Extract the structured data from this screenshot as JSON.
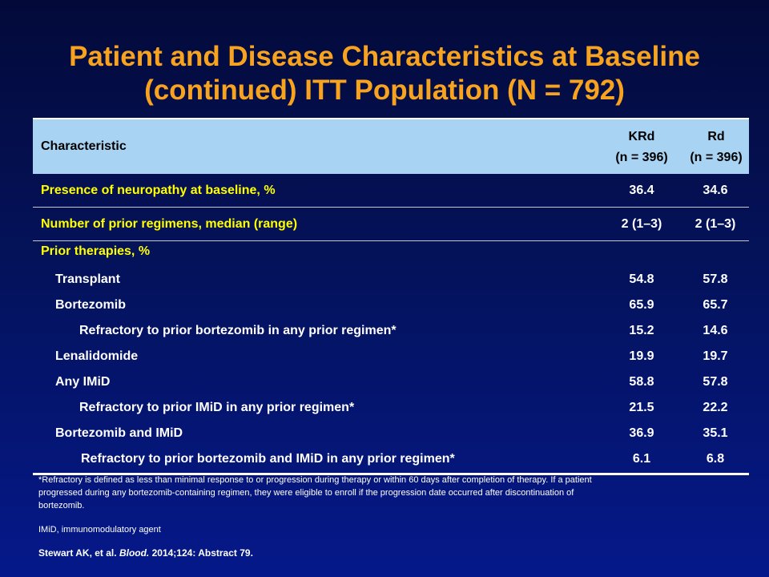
{
  "slide": {
    "title_line1": "Patient and Disease Characteristics at Baseline",
    "title_line2": "(continued) ITT Population (N = 792)"
  },
  "table": {
    "header": {
      "characteristic": "Characteristic",
      "col1_name": "KRd",
      "col1_n": "(n = 396)",
      "col2_name": "Rd",
      "col2_n": "(n = 396)"
    },
    "rows": [
      {
        "label": "Presence of neuropathy at baseline, %",
        "krd": "36.4",
        "rd": "34.6"
      },
      {
        "label": "Number of prior regimens, median (range)",
        "krd": "2 (1–3)",
        "rd": "2 (1–3)"
      },
      {
        "label": "Prior therapies, %",
        "krd": "",
        "rd": ""
      },
      {
        "label": "Transplant",
        "krd": "54.8",
        "rd": "57.8"
      },
      {
        "label": "Bortezomib",
        "krd": "65.9",
        "rd": "65.7"
      },
      {
        "label": "Refractory to prior bortezomib in any prior regimen*",
        "krd": "15.2",
        "rd": "14.6"
      },
      {
        "label": "Lenalidomide",
        "krd": "19.9",
        "rd": "19.7"
      },
      {
        "label": "Any IMiD",
        "krd": "58.8",
        "rd": "57.8"
      },
      {
        "label": "Refractory to prior IMiD in any prior regimen*",
        "krd": "21.5",
        "rd": "22.2"
      },
      {
        "label": "Bortezomib and IMiD",
        "krd": "36.9",
        "rd": "35.1"
      },
      {
        "label": "Refractory to prior bortezomib and IMiD in any prior regimen*",
        "krd": "6.1",
        "rd": "6.8"
      }
    ]
  },
  "footnote": {
    "line1": "*Refractory is defined as less than minimal response to or progression during therapy or within 60 days after completion of therapy. If a patient",
    "line2": "progressed during any bortezomib-containing regimen, they were eligible to enroll if the progression date occurred after discontinuation of",
    "line3": "bortezomib."
  },
  "abbreviation": "IMiD, immunomodulatory agent",
  "citation": {
    "authors": "Stewart AK, et al.",
    "journal": "Blood.",
    "details": "2014;124: Abstract 79."
  },
  "colors": {
    "title": "#f7a320",
    "highlight_label": "#ffff00",
    "header_bg": "#a9d3f3",
    "background_top": "#030a3a",
    "background_bottom": "#05188a"
  }
}
